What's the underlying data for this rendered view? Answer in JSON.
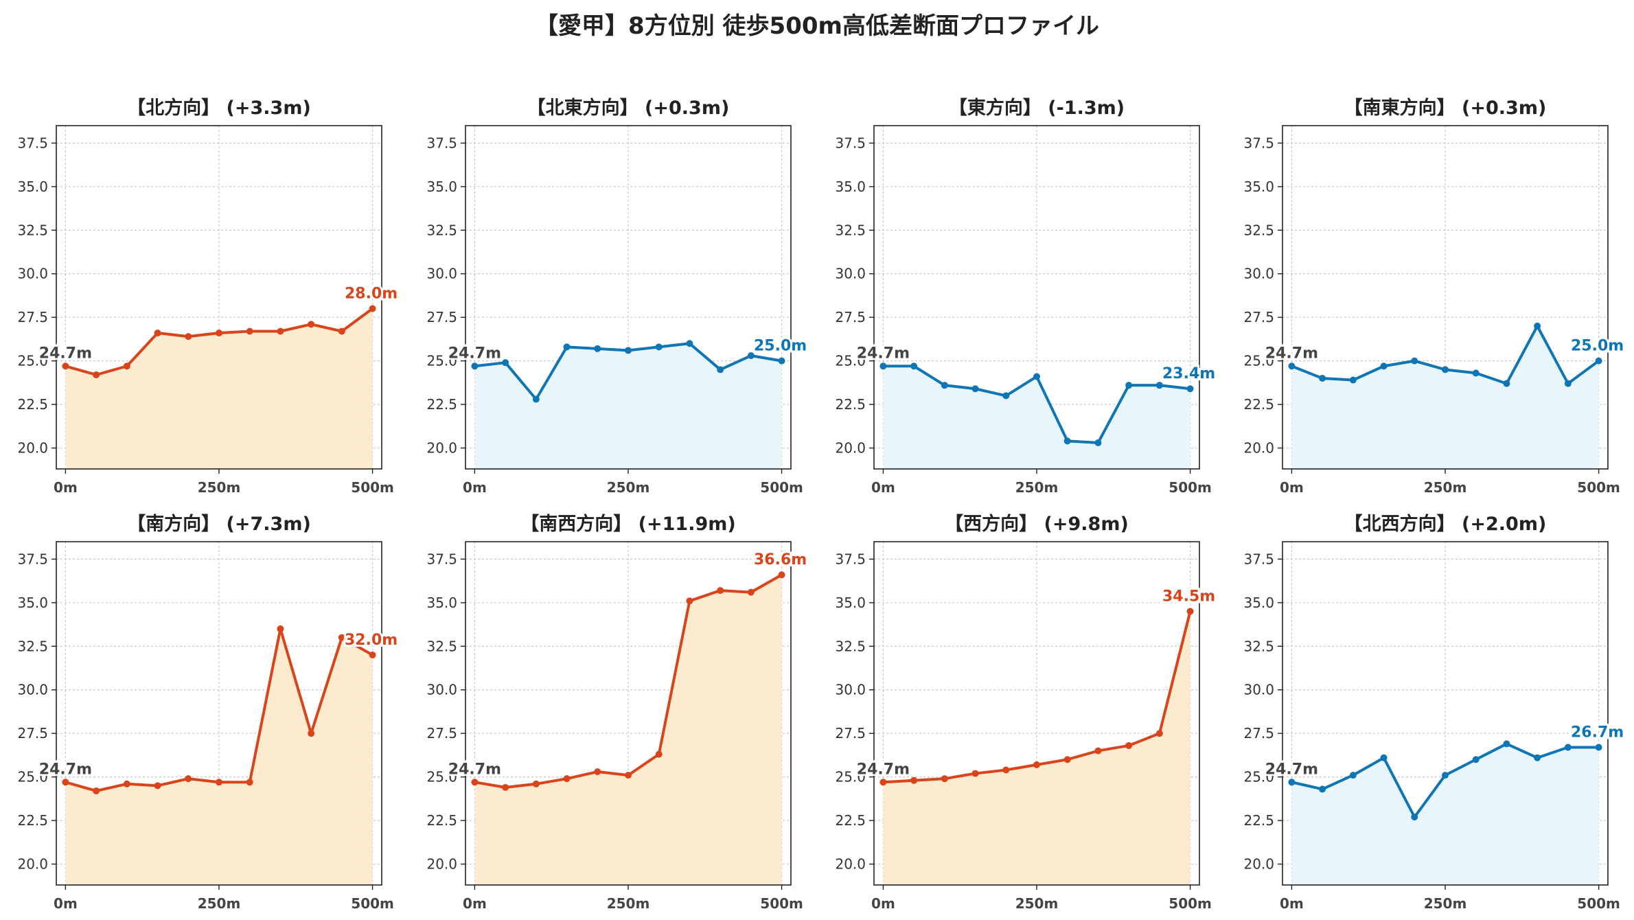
{
  "title": "【愛甲】8方位別 徒歩500m高低差断面プロファイル",
  "colors": {
    "up_line": "#d9441a",
    "up_fill": "#fdebd0",
    "down_line": "#0e76b4",
    "down_fill": "#e8f5fb",
    "start_label": "#444444"
  },
  "chart_data": [
    {
      "type": "area",
      "title": "【北方向】 (+3.3m)",
      "trend": "up",
      "x": [
        0,
        50,
        100,
        150,
        200,
        250,
        300,
        350,
        400,
        450,
        500
      ],
      "y": [
        24.7,
        24.2,
        24.7,
        26.6,
        26.4,
        26.6,
        26.7,
        26.7,
        27.1,
        26.7,
        28.0
      ],
      "xticks": [
        0,
        250,
        500
      ],
      "xtick_labels": [
        "0m",
        "250m",
        "500m"
      ],
      "yticks": [
        20.0,
        22.5,
        25.0,
        27.5,
        30.0,
        32.5,
        35.0,
        37.5
      ],
      "ytick_labels": [
        "20.0",
        "22.5",
        "25.0",
        "27.5",
        "30.0",
        "32.5",
        "35.0",
        "37.5"
      ],
      "xlim": [
        -15,
        515
      ],
      "ylim": [
        18.8,
        38.5
      ],
      "grid": true,
      "start_label": "24.7m",
      "end_label": "28.0m"
    },
    {
      "type": "area",
      "title": "【北東方向】 (+0.3m)",
      "trend": "down",
      "x": [
        0,
        50,
        100,
        150,
        200,
        250,
        300,
        350,
        400,
        450,
        500
      ],
      "y": [
        24.7,
        24.9,
        22.8,
        25.8,
        25.7,
        25.6,
        25.8,
        26.0,
        24.5,
        25.3,
        25.0
      ],
      "xticks": [
        0,
        250,
        500
      ],
      "xtick_labels": [
        "0m",
        "250m",
        "500m"
      ],
      "yticks": [
        20.0,
        22.5,
        25.0,
        27.5,
        30.0,
        32.5,
        35.0,
        37.5
      ],
      "ytick_labels": [
        "20.0",
        "22.5",
        "25.0",
        "27.5",
        "30.0",
        "32.5",
        "35.0",
        "37.5"
      ],
      "xlim": [
        -15,
        515
      ],
      "ylim": [
        18.8,
        38.5
      ],
      "grid": true,
      "start_label": "24.7m",
      "end_label": "25.0m"
    },
    {
      "type": "area",
      "title": "【東方向】 (-1.3m)",
      "trend": "down",
      "x": [
        0,
        50,
        100,
        150,
        200,
        250,
        300,
        350,
        400,
        450,
        500
      ],
      "y": [
        24.7,
        24.7,
        23.6,
        23.4,
        23.0,
        24.1,
        20.4,
        20.3,
        23.6,
        23.6,
        23.4
      ],
      "xticks": [
        0,
        250,
        500
      ],
      "xtick_labels": [
        "0m",
        "250m",
        "500m"
      ],
      "yticks": [
        20.0,
        22.5,
        25.0,
        27.5,
        30.0,
        32.5,
        35.0,
        37.5
      ],
      "ytick_labels": [
        "20.0",
        "22.5",
        "25.0",
        "27.5",
        "30.0",
        "32.5",
        "35.0",
        "37.5"
      ],
      "xlim": [
        -15,
        515
      ],
      "ylim": [
        18.8,
        38.5
      ],
      "grid": true,
      "start_label": "24.7m",
      "end_label": "23.4m"
    },
    {
      "type": "area",
      "title": "【南東方向】 (+0.3m)",
      "trend": "down",
      "x": [
        0,
        50,
        100,
        150,
        200,
        250,
        300,
        350,
        400,
        450,
        500
      ],
      "y": [
        24.7,
        24.0,
        23.9,
        24.7,
        25.0,
        24.5,
        24.3,
        23.7,
        27.0,
        23.7,
        25.0
      ],
      "xticks": [
        0,
        250,
        500
      ],
      "xtick_labels": [
        "0m",
        "250m",
        "500m"
      ],
      "yticks": [
        20.0,
        22.5,
        25.0,
        27.5,
        30.0,
        32.5,
        35.0,
        37.5
      ],
      "ytick_labels": [
        "20.0",
        "22.5",
        "25.0",
        "27.5",
        "30.0",
        "32.5",
        "35.0",
        "37.5"
      ],
      "xlim": [
        -15,
        515
      ],
      "ylim": [
        18.8,
        38.5
      ],
      "grid": true,
      "start_label": "24.7m",
      "end_label": "25.0m"
    },
    {
      "type": "area",
      "title": "【南方向】 (+7.3m)",
      "trend": "up",
      "x": [
        0,
        50,
        100,
        150,
        200,
        250,
        300,
        350,
        400,
        450,
        500
      ],
      "y": [
        24.7,
        24.2,
        24.6,
        24.5,
        24.9,
        24.7,
        24.7,
        33.5,
        27.5,
        33.0,
        32.0
      ],
      "xticks": [
        0,
        250,
        500
      ],
      "xtick_labels": [
        "0m",
        "250m",
        "500m"
      ],
      "yticks": [
        20.0,
        22.5,
        25.0,
        27.5,
        30.0,
        32.5,
        35.0,
        37.5
      ],
      "ytick_labels": [
        "20.0",
        "22.5",
        "25.0",
        "27.5",
        "30.0",
        "32.5",
        "35.0",
        "37.5"
      ],
      "xlim": [
        -15,
        515
      ],
      "ylim": [
        18.8,
        38.5
      ],
      "grid": true,
      "start_label": "24.7m",
      "end_label": "32.0m"
    },
    {
      "type": "area",
      "title": "【南西方向】 (+11.9m)",
      "trend": "up",
      "x": [
        0,
        50,
        100,
        150,
        200,
        250,
        300,
        350,
        400,
        450,
        500
      ],
      "y": [
        24.7,
        24.4,
        24.6,
        24.9,
        25.3,
        25.1,
        26.3,
        35.1,
        35.7,
        35.6,
        36.6
      ],
      "xticks": [
        0,
        250,
        500
      ],
      "xtick_labels": [
        "0m",
        "250m",
        "500m"
      ],
      "yticks": [
        20.0,
        22.5,
        25.0,
        27.5,
        30.0,
        32.5,
        35.0,
        37.5
      ],
      "ytick_labels": [
        "20.0",
        "22.5",
        "25.0",
        "27.5",
        "30.0",
        "32.5",
        "35.0",
        "37.5"
      ],
      "xlim": [
        -15,
        515
      ],
      "ylim": [
        18.8,
        38.5
      ],
      "grid": true,
      "start_label": "24.7m",
      "end_label": "36.6m"
    },
    {
      "type": "area",
      "title": "【西方向】 (+9.8m)",
      "trend": "up",
      "x": [
        0,
        50,
        100,
        150,
        200,
        250,
        300,
        350,
        400,
        450,
        500
      ],
      "y": [
        24.7,
        24.8,
        24.9,
        25.2,
        25.4,
        25.7,
        26.0,
        26.5,
        26.8,
        27.5,
        34.5
      ],
      "xticks": [
        0,
        250,
        500
      ],
      "xtick_labels": [
        "0m",
        "250m",
        "500m"
      ],
      "yticks": [
        20.0,
        22.5,
        25.0,
        27.5,
        30.0,
        32.5,
        35.0,
        37.5
      ],
      "ytick_labels": [
        "20.0",
        "22.5",
        "25.0",
        "27.5",
        "30.0",
        "32.5",
        "35.0",
        "37.5"
      ],
      "xlim": [
        -15,
        515
      ],
      "ylim": [
        18.8,
        38.5
      ],
      "grid": true,
      "start_label": "24.7m",
      "end_label": "34.5m"
    },
    {
      "type": "area",
      "title": "【北西方向】 (+2.0m)",
      "trend": "down",
      "x": [
        0,
        50,
        100,
        150,
        200,
        250,
        300,
        350,
        400,
        450,
        500
      ],
      "y": [
        24.7,
        24.3,
        25.1,
        26.1,
        22.7,
        25.1,
        26.0,
        26.9,
        26.1,
        26.7,
        26.7
      ],
      "xticks": [
        0,
        250,
        500
      ],
      "xtick_labels": [
        "0m",
        "250m",
        "500m"
      ],
      "yticks": [
        20.0,
        22.5,
        25.0,
        27.5,
        30.0,
        32.5,
        35.0,
        37.5
      ],
      "ytick_labels": [
        "20.0",
        "22.5",
        "25.0",
        "27.5",
        "30.0",
        "32.5",
        "35.0",
        "37.5"
      ],
      "xlim": [
        -15,
        515
      ],
      "ylim": [
        18.8,
        38.5
      ],
      "grid": true,
      "start_label": "24.7m",
      "end_label": "26.7m"
    }
  ]
}
